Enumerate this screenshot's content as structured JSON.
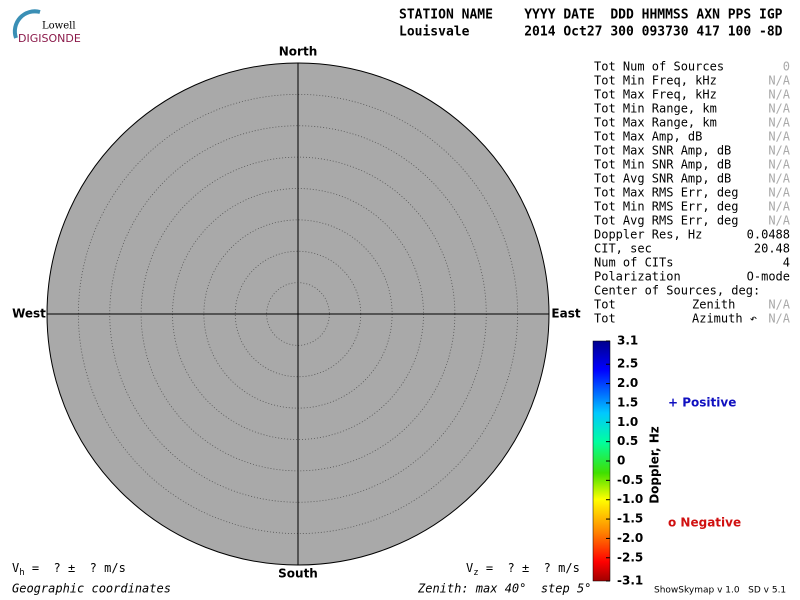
{
  "logo": {
    "top": "Lowell",
    "bottom": "DIGISONDE"
  },
  "header": {
    "line1": "STATION NAME    YYYY DATE  DDD HHMMSS AXN PPS IGP",
    "line2": "Louisvale       2014 Oct27 300 093730 417 100 -8D"
  },
  "skymap": {
    "north": "North",
    "south": "South",
    "west": "West",
    "east": "East",
    "zenith": {
      "max": 40,
      "step": 5,
      "label": "Zenith: max 40°  step 5°"
    },
    "coordinates": "Geographic coordinates"
  },
  "stats": [
    {
      "label": "Tot Num of Sources",
      "value": 0
    },
    {
      "label": "Tot Min Freq, kHz",
      "value": "N/A"
    },
    {
      "label": "Tot Max Freq, kHz",
      "value": "N/A"
    },
    {
      "label": "Tot Min Range, km",
      "value": "N/A"
    },
    {
      "label": "Tot Max Range, km",
      "value": "N/A"
    },
    {
      "label": "Tot Max Amp, dB",
      "value": "N/A"
    },
    {
      "label": "Tot Max SNR Amp, dB",
      "value": "N/A"
    },
    {
      "label": "Tot Min SNR Amp, dB",
      "value": "N/A"
    },
    {
      "label": "Tot Avg SNR Amp, dB",
      "value": "N/A"
    },
    {
      "label": "Tot Max RMS Err, deg",
      "value": "N/A"
    },
    {
      "label": "Tot Min RMS Err, deg",
      "value": "N/A"
    },
    {
      "label": "Tot Avg RMS Err, deg",
      "value": "N/A"
    },
    {
      "label": "Doppler Res, Hz",
      "value": 0.0488
    },
    {
      "label": "CIT, sec",
      "value": 20.48
    },
    {
      "label": "Num of CITs",
      "value": 4
    },
    {
      "label": "Polarization",
      "value": "O-mode"
    }
  ],
  "center": {
    "title": "Center of Sources, deg:",
    "rows": [
      {
        "label": "Tot",
        "sub": "Zenith",
        "value": "N/A"
      },
      {
        "label": "Tot",
        "sub": "Azimuth ↶",
        "value": "N/A"
      }
    ]
  },
  "colorbar": {
    "label": "Doppler, Hz",
    "lim": [
      -3.1,
      3.1
    ],
    "ticks": [
      3.1,
      2.5,
      {
        "value": 2,
        "label": "2.0"
      },
      1.5,
      {
        "value": 1,
        "label": "1.0"
      },
      0.5,
      0,
      -0.5,
      {
        "value": -1,
        "label": "-1.0"
      },
      -1.5,
      {
        "value": -2,
        "label": "-2.0"
      },
      -2.5,
      -3.1
    ],
    "positive": "+ Positive",
    "negative": "o Negative"
  },
  "velocity": {
    "vh": {
      "symbol": "V",
      "sub": "h",
      "text": " =  ? ±  ? m/s"
    },
    "vz": {
      "symbol": "V",
      "sub": "z",
      "text": " =  ? ±  ? m/s"
    }
  },
  "version": "ShowSkymap v 1.0   SD v 5.1"
}
